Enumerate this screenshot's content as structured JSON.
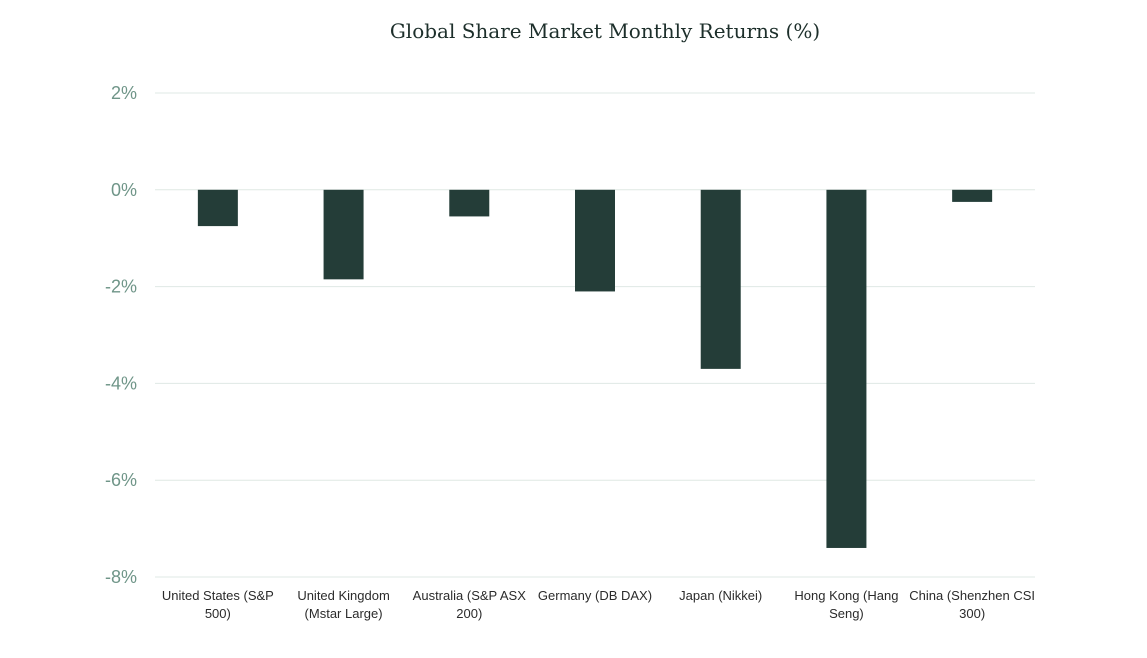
{
  "chart_data": {
    "type": "bar",
    "title": "Global Share Market Monthly Returns (%)",
    "categories": [
      [
        "United States (S&P",
        "500)"
      ],
      [
        "United Kingdom",
        "(Mstar Large)"
      ],
      [
        "Australia (S&P ASX",
        "200)"
      ],
      [
        "Germany (DB DAX)"
      ],
      [
        "Japan (Nikkei)"
      ],
      [
        "Hong Kong (Hang",
        "Seng)"
      ],
      [
        "China (Shenzhen CSI",
        "300)"
      ]
    ],
    "values": [
      -0.75,
      -1.85,
      -0.55,
      -2.1,
      -3.7,
      -7.4,
      -0.25
    ],
    "ylim": [
      -8,
      2
    ],
    "yticks": [
      2,
      0,
      -2,
      -4,
      -6,
      -8
    ],
    "ytick_labels": [
      "2%",
      "0%",
      "-2%",
      "-4%",
      "-6%",
      "-8%"
    ],
    "grid": true,
    "legend": "none",
    "colors": {
      "bar": "#243d38",
      "grid": "#dfe8e4",
      "ytick": "#6f9588",
      "title": "#1d2f2b"
    }
  }
}
